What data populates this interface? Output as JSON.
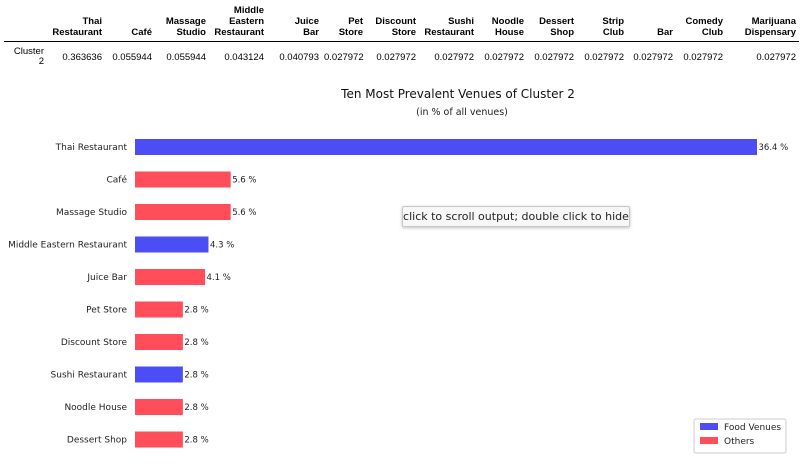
{
  "table": {
    "columns": [
      [
        "Thai",
        "Restaurant"
      ],
      [
        "Café"
      ],
      [
        "Massage",
        "Studio"
      ],
      [
        "Middle",
        "Eastern",
        "Restaurant"
      ],
      [
        "Juice",
        "Bar"
      ],
      [
        "Pet",
        "Store"
      ],
      [
        "Discount",
        "Store"
      ],
      [
        "Sushi",
        "Restaurant"
      ],
      [
        "Noodle",
        "House"
      ],
      [
        "Dessert",
        "Shop"
      ],
      [
        "Strip",
        "Club"
      ],
      [
        "Bar"
      ],
      [
        "Comedy",
        "Club"
      ],
      [
        "Marijuana",
        "Dispensary"
      ]
    ],
    "row_label": [
      "Cluster",
      "2"
    ],
    "row_values": [
      "0.363636",
      "0.055944",
      "0.055944",
      "0.043124",
      "0.040793",
      "0.027972",
      "0.027972",
      "0.027972",
      "0.027972",
      "0.027972",
      "0.027972",
      "0.027972",
      "0.027972",
      "0.027972"
    ]
  },
  "chart_data": {
    "type": "bar",
    "orientation": "horizontal",
    "title": "Ten Most Prevalent Venues of Cluster 2",
    "subtitle": "(in % of all venues)",
    "categories": [
      "Thai Restaurant",
      "Café",
      "Massage Studio",
      "Middle Eastern Restaurant",
      "Juice Bar",
      "Pet Store",
      "Discount Store",
      "Sushi Restaurant",
      "Noodle House",
      "Dessert Shop"
    ],
    "values": [
      36.4,
      5.6,
      5.6,
      4.3,
      4.1,
      2.8,
      2.8,
      2.8,
      2.8,
      2.8
    ],
    "groups": [
      "Food Venues",
      "Others",
      "Others",
      "Food Venues",
      "Others",
      "Others",
      "Others",
      "Food Venues",
      "Others",
      "Others"
    ],
    "value_labels": [
      "36.4 %",
      "5.6 %",
      "5.6 %",
      "4.3 %",
      "4.1 %",
      "2.8 %",
      "2.8 %",
      "2.8 %",
      "2.8 %",
      "2.8 %"
    ],
    "xlim": [
      0,
      36.4
    ],
    "legend": {
      "position": "bottom-right",
      "entries": [
        {
          "label": "Food Venues",
          "color": "#4d4df5"
        },
        {
          "label": "Others",
          "color": "#ff4d5a"
        }
      ]
    },
    "grid": false
  },
  "tooltip": {
    "text": "click to scroll output; double click to hide"
  }
}
